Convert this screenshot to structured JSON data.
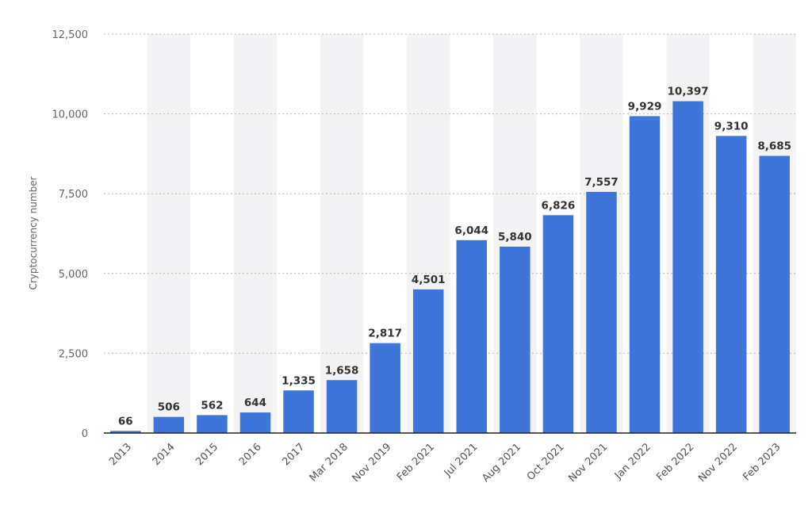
{
  "chart_data": {
    "type": "bar",
    "title": "",
    "xlabel": "",
    "ylabel": "Cryptocurrency number",
    "ylim": [
      0,
      12500
    ],
    "yticks": [
      0,
      2500,
      5000,
      7500,
      10000,
      12500
    ],
    "ytick_labels": [
      "0",
      "2,500",
      "5,000",
      "7,500",
      "10,000",
      "12,500"
    ],
    "grid": true,
    "bar_color": "#3f74d9",
    "categories": [
      "2013",
      "2014",
      "2015",
      "2016",
      "2017",
      "Mar 2018",
      "Nov 2019",
      "Feb 2021",
      "Jul 2021",
      "Aug 2021",
      "Oct 2021",
      "Nov 2021",
      "Jan 2022",
      "Feb 2022",
      "Nov 2022",
      "Feb 2023"
    ],
    "values": [
      66,
      506,
      562,
      644,
      1335,
      1658,
      2817,
      4501,
      6044,
      5840,
      6826,
      7557,
      9929,
      10397,
      9310,
      8685
    ],
    "value_labels": [
      "66",
      "506",
      "562",
      "644",
      "1,335",
      "1,658",
      "2,817",
      "4,501",
      "6,044",
      "5,840",
      "6,826",
      "7,557",
      "9,929",
      "10,397",
      "9,310",
      "8,685"
    ]
  }
}
